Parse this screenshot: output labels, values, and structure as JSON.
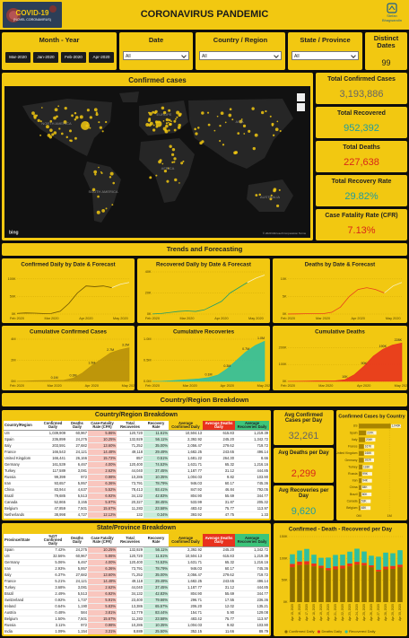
{
  "header": {
    "badge_title": "COVID-19",
    "badge_subtitle": "(NOVEL CORONAVIRUS)",
    "title": "CORONAVIRUS PANDEMIC",
    "logo_top": "Stefan",
    "logo_bottom": "Bhagwandin"
  },
  "filters": {
    "month_year": {
      "label": "Month - Year",
      "options": [
        "Mar-2020",
        "Jan-2020",
        "Feb-2020",
        "Apr-2020"
      ]
    },
    "date": {
      "label": "Date",
      "value": "All"
    },
    "country": {
      "label": "Country / Region",
      "value": "All"
    },
    "state": {
      "label": "State / Province",
      "value": "All"
    },
    "distinct_dates": {
      "label": "Distinct Dates",
      "value": "99"
    }
  },
  "map": {
    "title": "Confirmed cases",
    "labels": [
      "NORTH AMERICA",
      "EUROPE",
      "ASIA",
      "AFRICA",
      "SOUTH AMERICA",
      "AUSTRALIA"
    ],
    "copyright": "© 2020 Microsoft Corporation Terms",
    "brand": "bing"
  },
  "kpis": [
    {
      "label": "Total Confirmed Cases",
      "value": "3,193,886"
    },
    {
      "label": "Total Recovered",
      "value": "952,392"
    },
    {
      "label": "Total Deaths",
      "value": "227,638"
    },
    {
      "label": "Total Recovery Rate",
      "value": "29.82%"
    },
    {
      "label": "Case Fatality Rate (CFR)",
      "value": "7.13%"
    }
  ],
  "sections": {
    "trends": "Trends and Forecasting",
    "country": "Country/Region Breakdown"
  },
  "avg_kpis": [
    {
      "label": "Avg Confirmed Cases per Day",
      "value": "32,261"
    },
    {
      "label": "Avg Deaths per Day",
      "value": "2,299"
    },
    {
      "label": "Avg Recoveries per Day",
      "value": "9,620"
    }
  ],
  "tables": {
    "country": {
      "title": "Country/Region Breakdown",
      "columns": [
        "Country/Region",
        "Confirmed Daily",
        "Deaths Daily",
        "Case-Fatality Rate (CFR)",
        "Total Recoveries",
        "Recovery Rate",
        "Average Confirmed Daily",
        "Average Deaths Daily",
        "Average Recoveries Daily"
      ],
      "rows": [
        [
          "US",
          "1,039,909",
          "60,967",
          "5.86%",
          "120,720",
          "11.61%",
          "10,504.13",
          "615.83",
          "1,219.39"
        ],
        [
          "Spain",
          "236,899",
          "24,275",
          "10.25%",
          "132,929",
          "56.11%",
          "2,392.92",
          "245.20",
          "1,342.72"
        ],
        [
          "Italy",
          "203,591",
          "27,682",
          "13.60%",
          "71,252",
          "35.00%",
          "2,056.47",
          "279.62",
          "719.72"
        ],
        [
          "France",
          "166,543",
          "24,121",
          "14.48%",
          "49,118",
          "29.49%",
          "1,682.25",
          "243.65",
          "496.14"
        ],
        [
          "United Kingdom",
          "166,441",
          "26,166",
          "15.72%",
          "857",
          "0.51%",
          "1,681.22",
          "264.30",
          "8.66"
        ],
        [
          "Germany",
          "161,539",
          "6,467",
          "4.00%",
          "120,400",
          "74.53%",
          "1,631.71",
          "65.32",
          "1,216.16"
        ],
        [
          "Turkey",
          "117,589",
          "3,081",
          "2.62%",
          "44,040",
          "37.45%",
          "1,187.77",
          "31.12",
          "444.85"
        ],
        [
          "Russia",
          "99,399",
          "972",
          "0.98%",
          "10,286",
          "10.35%",
          "1,004.03",
          "9.82",
          "103.90"
        ],
        [
          "Iran",
          "93,657",
          "5,957",
          "6.36%",
          "73,791",
          "78.79%",
          "946.03",
          "60.17",
          "745.36"
        ],
        [
          "China",
          "83,944",
          "4,637",
          "5.52%",
          "78,413",
          "93.41%",
          "847.92",
          "46.84",
          "792.05"
        ],
        [
          "Brazil",
          "79,685",
          "5,513",
          "6.92%",
          "34,132",
          "42.83%",
          "804.90",
          "55.69",
          "344.77"
        ],
        [
          "Canada",
          "52,865",
          "3,155",
          "5.97%",
          "20,327",
          "38.45%",
          "533.99",
          "31.87",
          "205.32"
        ],
        [
          "Belgium",
          "47,859",
          "7,501",
          "15.67%",
          "11,283",
          "23.58%",
          "483.42",
          "75.77",
          "113.97"
        ],
        [
          "Netherlands",
          "38,998",
          "4,727",
          "12.12%",
          "132",
          "0.34%",
          "393.92",
          "47.75",
          "1.33"
        ]
      ],
      "total": [
        "Total",
        "3,193,886",
        "227,638",
        "7.13%",
        "952,392",
        "29.82%",
        "32,261.47",
        "2,299.37",
        "9,620.12"
      ]
    },
    "state": {
      "title": "State/Province Breakdown",
      "columns": [
        "Province/State",
        "%GT Confirmed Daily",
        "Deaths Daily",
        "Case Fatality Rate (CFR)",
        "Total Recoveries",
        "Recovery Rate",
        "Average Confirmed Daily",
        "Average Deaths Daily",
        "Average Recoveries Daily"
      ],
      "rows": [
        [
          "Spain",
          "7.42%",
          "24,275",
          "10.25%",
          "132,929",
          "56.11%",
          "2,392.92",
          "245.20",
          "1,342.72"
        ],
        [
          "US",
          "32.56%",
          "60,967",
          "5.86%",
          "120,720",
          "11.61%",
          "10,504.13",
          "615.83",
          "1,219.39"
        ],
        [
          "Germany",
          "5.06%",
          "6,467",
          "4.00%",
          "120,400",
          "74.53%",
          "1,631.71",
          "65.32",
          "1,216.16"
        ],
        [
          "Iran",
          "2.93%",
          "5,957",
          "6.36%",
          "73,791",
          "78.79%",
          "946.03",
          "60.17",
          "745.36"
        ],
        [
          "Italy",
          "6.37%",
          "27,682",
          "13.60%",
          "71,252",
          "35.00%",
          "2,056.47",
          "279.62",
          "719.72"
        ],
        [
          "France",
          "5.21%",
          "24,121",
          "14.48%",
          "49,118",
          "29.49%",
          "1,682.25",
          "243.65",
          "496.14"
        ],
        [
          "Turkey",
          "3.68%",
          "3,081",
          "2.62%",
          "44,040",
          "37.45%",
          "1,187.77",
          "31.12",
          "444.85"
        ],
        [
          "Brazil",
          "2.49%",
          "5,513",
          "6.92%",
          "34,132",
          "42.83%",
          "804.90",
          "55.69",
          "344.77"
        ],
        [
          "Switzerland",
          "0.92%",
          "1,737",
          "5.91%",
          "23,400",
          "79.66%",
          "296.71",
          "17.55",
          "236.36"
        ],
        [
          "Ireland",
          "0.64%",
          "1,190",
          "5.83%",
          "13,386",
          "65.57%",
          "206.20",
          "12.02",
          "135.21"
        ],
        [
          "Austria",
          "0.48%",
          "584",
          "3.81%",
          "12,779",
          "83.44%",
          "154.71",
          "5.90",
          "129.08"
        ],
        [
          "Belgium",
          "1.50%",
          "7,501",
          "15.67%",
          "11,283",
          "23.58%",
          "483.42",
          "75.77",
          "113.97"
        ],
        [
          "Russia",
          "3.11%",
          "972",
          "0.98%",
          "10,286",
          "10.35%",
          "1,004.03",
          "9.82",
          "103.90"
        ],
        [
          "India",
          "1.09%",
          "1,154",
          "3.31%",
          "8,889",
          "25.50%",
          "352.15",
          "11.66",
          "89.79"
        ]
      ],
      "total": [
        "Total",
        "100.00%",
        "227,638",
        "7.13%",
        "952,392",
        "29.82%",
        "32,261.47",
        "2,299.37",
        "9,620.12"
      ]
    }
  },
  "chart_data": [
    {
      "type": "line",
      "title": "Confirmed Daily by Date & Forecast",
      "categories": [
        "Feb 2020",
        null,
        null,
        null,
        "Mar 2020",
        null,
        null,
        null,
        "Apr 2020",
        null,
        null,
        null,
        "May 2020",
        null
      ],
      "ylim": [
        0,
        120000
      ],
      "yticks": [
        {
          "value": 0,
          "label": "0K"
        },
        {
          "value": 50000,
          "label": "50K"
        },
        {
          "value": 100000,
          "label": "100K"
        }
      ],
      "series": [
        {
          "color": "#6b5200",
          "values": [
            2000,
            3000,
            2500,
            1500,
            2000,
            8000,
            30000,
            60000,
            80000,
            78000,
            80000,
            75000,
            null,
            null
          ]
        },
        {
          "color": "#f7f1c8",
          "values": [
            null,
            null,
            null,
            null,
            null,
            null,
            null,
            null,
            null,
            null,
            null,
            75000,
            85000,
            90000
          ]
        }
      ]
    },
    {
      "type": "line",
      "title": "Recovered Daily by Date & Forecast",
      "categories": [
        "Feb 2020",
        null,
        null,
        null,
        "Mar 2020",
        null,
        null,
        null,
        "Apr 2020",
        null,
        null,
        null,
        "May 2020",
        null
      ],
      "ylim": [
        0,
        40000
      ],
      "yticks": [
        {
          "value": 0,
          "label": "0K"
        },
        {
          "value": 20000,
          "label": "20K"
        },
        {
          "value": 40000,
          "label": "40K"
        }
      ],
      "series": [
        {
          "color": "#1e9e6e",
          "values": [
            100,
            500,
            1500,
            2500,
            3000,
            2500,
            4000,
            8000,
            12000,
            20000,
            25000,
            30000,
            null,
            null
          ]
        },
        {
          "color": "#f7f1c8",
          "values": [
            null,
            null,
            null,
            null,
            null,
            null,
            null,
            null,
            null,
            null,
            null,
            30000,
            34000,
            37000
          ]
        }
      ]
    },
    {
      "type": "line",
      "title": "Deaths by Date & Forecast",
      "categories": [
        "Feb 2020",
        null,
        null,
        null,
        "Mar 2020",
        null,
        null,
        null,
        "Apr 2020",
        null,
        null,
        null,
        "May 2020",
        null
      ],
      "ylim": [
        0,
        12000
      ],
      "yticks": [
        {
          "value": 0,
          "label": "0K"
        },
        {
          "value": 5000,
          "label": "5K"
        },
        {
          "value": 10000,
          "label": "10K"
        }
      ],
      "series": [
        {
          "color": "#e8401c",
          "values": [
            10,
            50,
            100,
            100,
            100,
            500,
            2000,
            5000,
            7000,
            7500,
            7000,
            6000,
            null,
            null
          ]
        },
        {
          "color": "#f7f1c8",
          "values": [
            null,
            null,
            null,
            null,
            null,
            null,
            null,
            null,
            null,
            null,
            null,
            6000,
            8000,
            9000
          ]
        }
      ]
    },
    {
      "type": "area",
      "title": "Cumulative Confirmed Cases",
      "categories": [
        "Feb 2020",
        null,
        null,
        null,
        "Mar 2020",
        null,
        null,
        null,
        "Apr 2020",
        null,
        null,
        null,
        "May 2020"
      ],
      "ylim": [
        0,
        4000000
      ],
      "yticks": [
        {
          "value": 0,
          "label": "0M"
        },
        {
          "value": 2000000,
          "label": "2M"
        },
        {
          "value": 4000000,
          "label": "4M"
        }
      ],
      "series": [
        {
          "color": "#b8900a",
          "values": [
            12000,
            40000,
            70000,
            80000,
            90000,
            110000,
            300000,
            800000,
            1500000,
            2100000,
            2700000,
            3000000,
            3193886
          ],
          "value_labels": [
            null,
            null,
            null,
            null,
            "0.1M",
            null,
            "0.3M",
            null,
            "1.5M",
            null,
            "2.7M",
            null,
            "3.2M"
          ]
        }
      ]
    },
    {
      "type": "area",
      "title": "Cumulative Recoveries",
      "categories": [
        "Feb 2020",
        null,
        null,
        null,
        "Mar 2020",
        null,
        null,
        null,
        "Apr 2020",
        null,
        null,
        null,
        "May 2020"
      ],
      "ylim": [
        0,
        1000000
      ],
      "yticks": [
        {
          "value": 0,
          "label": "0.0M"
        },
        {
          "value": 500000,
          "label": "0.5M"
        },
        {
          "value": 1000000,
          "label": "1.0M"
        }
      ],
      "series": [
        {
          "color": "#2fbfa0",
          "values": [
            500,
            5000,
            15000,
            30000,
            45000,
            60000,
            90000,
            150000,
            300000,
            500000,
            700000,
            850000,
            952392
          ],
          "value_labels": [
            null,
            null,
            null,
            null,
            null,
            null,
            "0.1M",
            null,
            "0.3M",
            null,
            "0.7M",
            null,
            "1.0M"
          ]
        }
      ]
    },
    {
      "type": "area",
      "title": "Cumulative Deaths",
      "categories": [
        "Feb 2020",
        null,
        null,
        null,
        "Mar 2020",
        null,
        null,
        null,
        "Apr 2020",
        null,
        null,
        null,
        "May 2020"
      ],
      "ylim": [
        0,
        250000
      ],
      "yticks": [
        {
          "value": 0,
          "label": "0K"
        },
        {
          "value": 100000,
          "label": "100K"
        },
        {
          "value": 200000,
          "label": "200K"
        }
      ],
      "series": [
        {
          "color": "#e8321e",
          "values": [
            200,
            1000,
            2000,
            2800,
            3000,
            3500,
            10000,
            40000,
            90000,
            150000,
            190000,
            215000,
            227638
          ],
          "value_labels": [
            null,
            null,
            null,
            null,
            null,
            null,
            "10K",
            null,
            "90K",
            null,
            "190K",
            null,
            "228K"
          ]
        }
      ]
    },
    {
      "type": "hbar",
      "title": "Confirmed Cases by Country",
      "categories": [
        "US",
        "Spain",
        "Italy",
        "France",
        "United Kingdom",
        "Germany",
        "Turkey",
        "Russia",
        "Iran",
        "China",
        "Brazil",
        "Canada",
        "Belgium"
      ],
      "values": [
        1039909,
        236899,
        203591,
        166543,
        166441,
        161539,
        117589,
        99399,
        93657,
        83944,
        79685,
        52865,
        47859
      ],
      "value_labels": [
        "1,040K",
        "237K",
        "204K",
        "167K",
        "166K",
        "162K",
        "118K",
        "99K",
        "94K",
        "84K",
        "80K",
        "53K",
        "48K"
      ],
      "color": "#a88400",
      "xlim": [
        0,
        1200000
      ],
      "xticks": [
        {
          "value": 0,
          "label": "0M"
        },
        {
          "value": 1000000,
          "label": "1M"
        }
      ]
    },
    {
      "type": "stacked_bar",
      "title": "Confirmed - Death - Recovered per Day",
      "categories": [
        "Apr 15, 2020",
        "Apr 16, 2020",
        "Apr 17, 2020",
        "Apr 18, 2020",
        "Apr 19, 2020",
        "Apr 20, 2020",
        "Apr 21, 2020",
        "Apr 22, 2020",
        "Apr 23, 2020",
        "Apr 24, 2020",
        "Apr 25, 2020",
        "Apr 26, 2020",
        "Apr 27, 2020",
        "Apr 28, 2020",
        "Apr 29, 2020",
        "Apr 30, 2020"
      ],
      "ylim": [
        0,
        150000
      ],
      "yticks": [
        {
          "value": 0,
          "label": "0K"
        },
        {
          "value": 50000,
          "label": "50K"
        },
        {
          "value": 100000,
          "label": "100K"
        },
        {
          "value": 150000,
          "label": "150K"
        }
      ],
      "series": [
        {
          "name": "Confirmed Daily",
          "color": "#8a6d00",
          "values": [
            80000,
            85000,
            86000,
            82000,
            78000,
            73000,
            75000,
            77000,
            82000,
            86000,
            84000,
            80000,
            70000,
            75000,
            76000,
            80000
          ]
        },
        {
          "name": "Deaths Daily",
          "color": "#e8321e",
          "values": [
            7500,
            8000,
            7800,
            6500,
            5500,
            5000,
            7000,
            6800,
            6500,
            6300,
            5900,
            4200,
            4000,
            6300,
            6900,
            5800
          ]
        },
        {
          "name": "Recovered Daily",
          "color": "#2fbfa0",
          "values": [
            22000,
            25000,
            28000,
            20000,
            18000,
            24000,
            26000,
            25000,
            27000,
            30000,
            26000,
            22000,
            30000,
            32000,
            29000,
            33000
          ]
        }
      ]
    }
  ]
}
